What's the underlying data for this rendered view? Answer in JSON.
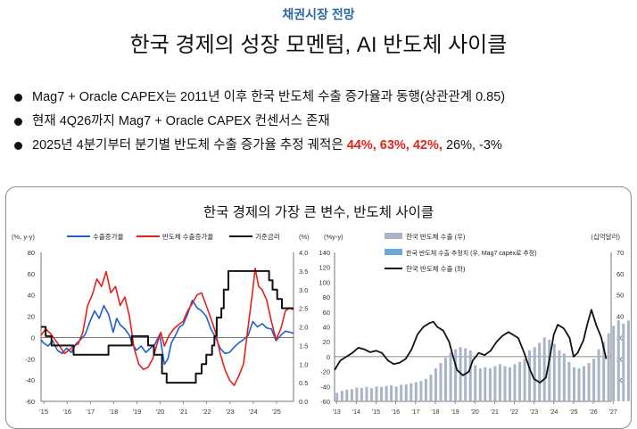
{
  "header": {
    "section_label": "채권시장 전망",
    "title": "한국 경제의 성장 모멘텀, AI 반도체 사이클"
  },
  "bullets": [
    {
      "text": "Mag7 + Oracle CAPEX는 2011년 이후 한국 반도체 수출 증가율과 동행(상관관계 0.85)"
    },
    {
      "text": "현재 4Q26까지 Mag7 + Oracle CAPEX 컨센서스 존재"
    },
    {
      "prefix": "2025년 4분기부터 분기별 반도체 수출 증가율 추정 궤적은 ",
      "highlight": "44%, 63%, 42%,",
      "suffix": " 26%, -3%"
    }
  ],
  "panel": {
    "title": "한국 경제의 가장 큰 변수, 반도체 사이클"
  },
  "colors": {
    "blue": "#1f5fd1",
    "red": "#e8201a",
    "black": "#111111",
    "bar_grey": "#a9b4c8",
    "bar_blue": "#6fa6d8",
    "accent": "#2f66a8"
  },
  "chart_data": [
    {
      "type": "line",
      "left_unit": "(%, y-y)",
      "right_unit": "(%)",
      "x_tick_labels": [
        "'15",
        "'16",
        "'17",
        "'18",
        "'19",
        "'20",
        "'21",
        "'22",
        "'23",
        "'24",
        "'25"
      ],
      "left_ylim": [
        -60,
        80
      ],
      "left_ticks": [
        "80",
        "60",
        "40",
        "20",
        "0",
        "-20",
        "-40",
        "-60"
      ],
      "right_ylim": [
        0.0,
        4.0
      ],
      "right_ticks": [
        "4.0",
        "3.5",
        "3.0",
        "2.5",
        "2.0",
        "1.5",
        "1.0",
        "0.5",
        "0.0"
      ],
      "x_range": [
        2015.0,
        2025.85
      ],
      "series": [
        {
          "name": "수출증가율",
          "axis": "left",
          "color": "blue",
          "points": [
            [
              2015.0,
              -2
            ],
            [
              2015.1,
              -5
            ],
            [
              2015.3,
              -8
            ],
            [
              2015.5,
              -3
            ],
            [
              2015.7,
              -12
            ],
            [
              2015.9,
              -15
            ],
            [
              2016.1,
              -10
            ],
            [
              2016.3,
              -14
            ],
            [
              2016.5,
              -6
            ],
            [
              2016.7,
              -2
            ],
            [
              2016.9,
              3
            ],
            [
              2017.1,
              15
            ],
            [
              2017.3,
              25
            ],
            [
              2017.5,
              18
            ],
            [
              2017.7,
              30
            ],
            [
              2017.9,
              22
            ],
            [
              2018.1,
              5
            ],
            [
              2018.25,
              18
            ],
            [
              2018.4,
              12
            ],
            [
              2018.6,
              8
            ],
            [
              2018.8,
              2
            ],
            [
              2018.9,
              -5
            ],
            [
              2019.1,
              -12
            ],
            [
              2019.3,
              -8
            ],
            [
              2019.5,
              -14
            ],
            [
              2019.7,
              -10
            ],
            [
              2019.9,
              -6
            ],
            [
              2020.1,
              3
            ],
            [
              2020.3,
              -25
            ],
            [
              2020.45,
              -20
            ],
            [
              2020.6,
              -5
            ],
            [
              2020.8,
              3
            ],
            [
              2020.95,
              10
            ],
            [
              2021.1,
              12
            ],
            [
              2021.3,
              22
            ],
            [
              2021.5,
              35
            ],
            [
              2021.7,
              28
            ],
            [
              2021.9,
              25
            ],
            [
              2022.1,
              20
            ],
            [
              2022.3,
              8
            ],
            [
              2022.5,
              0
            ],
            [
              2022.7,
              -10
            ],
            [
              2022.9,
              -15
            ],
            [
              2023.1,
              -14
            ],
            [
              2023.3,
              -9
            ],
            [
              2023.5,
              -5
            ],
            [
              2023.7,
              -2
            ],
            [
              2023.9,
              2
            ],
            [
              2024.1,
              15
            ],
            [
              2024.3,
              10
            ],
            [
              2024.5,
              13
            ],
            [
              2024.7,
              9
            ],
            [
              2024.9,
              8
            ],
            [
              2025.1,
              -3
            ],
            [
              2025.3,
              2
            ],
            [
              2025.5,
              6
            ],
            [
              2025.7,
              5
            ],
            [
              2025.85,
              4
            ]
          ]
        },
        {
          "name": "반도체 수출증가율",
          "axis": "left",
          "color": "red",
          "points": [
            [
              2015.0,
              2
            ],
            [
              2015.2,
              8
            ],
            [
              2015.4,
              4
            ],
            [
              2015.6,
              -2
            ],
            [
              2015.8,
              -8
            ],
            [
              2016.0,
              -15
            ],
            [
              2016.2,
              -12
            ],
            [
              2016.4,
              -8
            ],
            [
              2016.6,
              -6
            ],
            [
              2016.8,
              5
            ],
            [
              2017.0,
              30
            ],
            [
              2017.2,
              40
            ],
            [
              2017.4,
              55
            ],
            [
              2017.6,
              48
            ],
            [
              2017.8,
              62
            ],
            [
              2018.0,
              42
            ],
            [
              2018.2,
              48
            ],
            [
              2018.4,
              30
            ],
            [
              2018.6,
              38
            ],
            [
              2018.8,
              20
            ],
            [
              2019.0,
              -10
            ],
            [
              2019.2,
              -25
            ],
            [
              2019.4,
              -30
            ],
            [
              2019.6,
              -28
            ],
            [
              2019.8,
              -20
            ],
            [
              2020.0,
              -5
            ],
            [
              2020.15,
              5
            ],
            [
              2020.3,
              -8
            ],
            [
              2020.5,
              2
            ],
            [
              2020.7,
              8
            ],
            [
              2020.9,
              12
            ],
            [
              2021.1,
              15
            ],
            [
              2021.3,
              25
            ],
            [
              2021.5,
              32
            ],
            [
              2021.7,
              40
            ],
            [
              2021.9,
              42
            ],
            [
              2022.1,
              30
            ],
            [
              2022.3,
              18
            ],
            [
              2022.5,
              5
            ],
            [
              2022.7,
              -15
            ],
            [
              2022.9,
              -30
            ],
            [
              2023.1,
              -40
            ],
            [
              2023.3,
              -45
            ],
            [
              2023.5,
              -36
            ],
            [
              2023.7,
              -25
            ],
            [
              2023.9,
              10
            ],
            [
              2024.1,
              45
            ],
            [
              2024.2,
              65
            ],
            [
              2024.35,
              48
            ],
            [
              2024.5,
              45
            ],
            [
              2024.7,
              35
            ],
            [
              2024.9,
              15
            ],
            [
              2025.1,
              -2
            ],
            [
              2025.3,
              8
            ],
            [
              2025.5,
              25
            ],
            [
              2025.7,
              28
            ],
            [
              2025.85,
              26
            ]
          ]
        },
        {
          "name": "기준금리",
          "axis": "right",
          "color": "black",
          "points": [
            [
              2015.0,
              2.0
            ],
            [
              2015.2,
              1.75
            ],
            [
              2015.45,
              1.5
            ],
            [
              2016.4,
              1.25
            ],
            [
              2017.9,
              1.5
            ],
            [
              2018.9,
              1.75
            ],
            [
              2019.6,
              1.5
            ],
            [
              2019.85,
              1.25
            ],
            [
              2020.2,
              0.75
            ],
            [
              2020.4,
              0.5
            ],
            [
              2021.65,
              0.75
            ],
            [
              2021.9,
              1.0
            ],
            [
              2022.1,
              1.25
            ],
            [
              2022.35,
              1.5
            ],
            [
              2022.45,
              1.75
            ],
            [
              2022.55,
              2.25
            ],
            [
              2022.75,
              2.5
            ],
            [
              2022.85,
              3.0
            ],
            [
              2023.05,
              3.5
            ],
            [
              2024.8,
              3.25
            ],
            [
              2024.95,
              3.0
            ],
            [
              2025.15,
              2.75
            ],
            [
              2025.35,
              2.5
            ],
            [
              2025.85,
              2.5
            ]
          ]
        }
      ]
    },
    {
      "type": "bar",
      "left_unit": "(%y-y)",
      "right_unit": "(십억달러)",
      "x_tick_labels": [
        "'13",
        "'14",
        "'15",
        "'16",
        "'17",
        "'18",
        "'19",
        "'20",
        "'21",
        "'22",
        "'23",
        "'24",
        "'25",
        "'26",
        "'27"
      ],
      "left_ylim": [
        -60,
        140
      ],
      "left_ticks": [
        "140",
        "120",
        "100",
        "80",
        "60",
        "40",
        "20",
        "0",
        "-20",
        "-40",
        "-60"
      ],
      "right_ylim": [
        0,
        70
      ],
      "right_ticks": [
        "70",
        "60",
        "50",
        "40",
        "30",
        "20",
        "10"
      ],
      "legend": [
        "한국 반도체 수출 (우)",
        "한국 반도체 수출 추정치 (우, Mag7 capex로 추정)",
        "한국 반도체 수출 (좌)"
      ],
      "bars_actual": [
        4.0,
        5.0,
        5.5,
        5.8,
        6.5,
        6.3,
        6.8,
        6.2,
        7.0,
        6.8,
        7.2,
        7.5,
        7.0,
        7.8,
        8.0,
        8.5,
        9.0,
        9.5,
        10.5,
        12.5,
        15.5,
        18.0,
        20.5,
        23.0,
        24.5,
        25.5,
        25.0,
        24.0,
        17.0,
        15.5,
        16.0,
        15.5,
        16.5,
        17.5,
        16.5,
        16.0,
        17.5,
        18.5,
        20.0,
        24.0,
        25.5,
        27.5,
        30.0,
        29.0,
        27.0,
        24.0,
        22.5,
        18.5,
        16.0,
        15.5,
        16.5,
        18.0,
        20.0,
        24.5,
        28.0,
        32.0,
        35.5,
        38.0,
        36.5,
        38.0,
        39.0,
        40.5,
        44.0
      ],
      "bars_estimate": [
        52.0,
        58.0,
        63.5,
        66.0,
        68.0
      ],
      "line_points": [
        [
          2013.0,
          -18
        ],
        [
          2013.3,
          -5
        ],
        [
          2013.6,
          0
        ],
        [
          2013.9,
          5
        ],
        [
          2014.2,
          12
        ],
        [
          2014.5,
          10
        ],
        [
          2014.8,
          6
        ],
        [
          2015.1,
          8
        ],
        [
          2015.4,
          5
        ],
        [
          2015.7,
          -5
        ],
        [
          2016.0,
          -10
        ],
        [
          2016.3,
          -8
        ],
        [
          2016.6,
          -3
        ],
        [
          2016.9,
          10
        ],
        [
          2017.2,
          30
        ],
        [
          2017.5,
          40
        ],
        [
          2017.8,
          45
        ],
        [
          2018.0,
          47
        ],
        [
          2018.2,
          40
        ],
        [
          2018.5,
          35
        ],
        [
          2018.8,
          20
        ],
        [
          2019.0,
          0
        ],
        [
          2019.2,
          -18
        ],
        [
          2019.5,
          -25
        ],
        [
          2019.8,
          -20
        ],
        [
          2020.0,
          -5
        ],
        [
          2020.3,
          5
        ],
        [
          2020.6,
          2
        ],
        [
          2020.9,
          8
        ],
        [
          2021.2,
          20
        ],
        [
          2021.5,
          28
        ],
        [
          2021.8,
          33
        ],
        [
          2022.0,
          30
        ],
        [
          2022.3,
          25
        ],
        [
          2022.6,
          5
        ],
        [
          2022.9,
          -18
        ],
        [
          2023.1,
          -30
        ],
        [
          2023.4,
          -35
        ],
        [
          2023.7,
          -28
        ],
        [
          2023.9,
          0
        ],
        [
          2024.1,
          30
        ],
        [
          2024.3,
          43
        ],
        [
          2024.6,
          38
        ],
        [
          2024.9,
          25
        ],
        [
          2025.1,
          0
        ],
        [
          2025.3,
          5
        ],
        [
          2025.6,
          22
        ],
        [
          2025.8,
          44
        ],
        [
          2026.0,
          63
        ],
        [
          2026.25,
          42
        ],
        [
          2026.5,
          26
        ],
        [
          2026.75,
          -3
        ]
      ]
    }
  ]
}
